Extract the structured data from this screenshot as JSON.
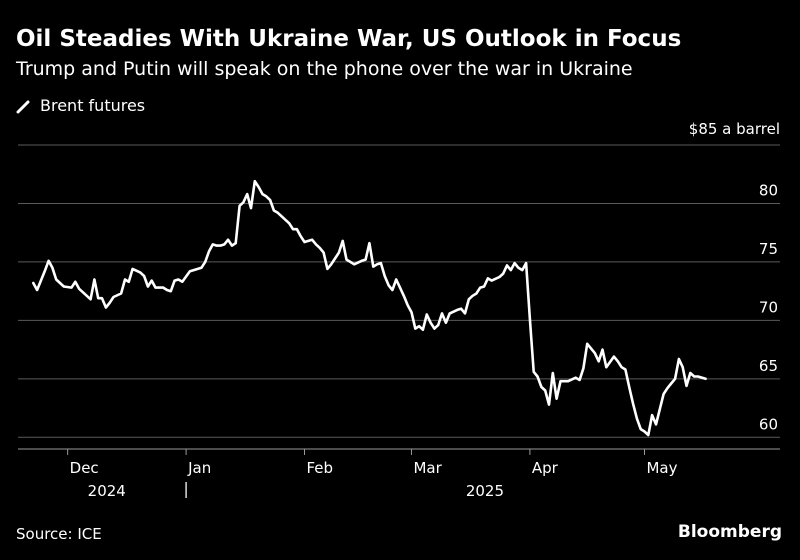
{
  "header": {
    "title": "Oil Steadies With Ukraine War, US Outlook in Focus",
    "subtitle": "Trump and Putin will speak on the phone over the war in Ukraine"
  },
  "legend": {
    "label": "Brent futures",
    "icon": "line-swatch-icon"
  },
  "footer": {
    "source": "Source: ICE",
    "brand": "Bloomberg"
  },
  "colors": {
    "background": "#000000",
    "line": "#ffffff",
    "grid": "#5a5a5a",
    "text": "#ffffff"
  },
  "chart_data": {
    "type": "line",
    "title": "Oil Steadies With Ukraine War, US Outlook in Focus",
    "subtitle": "Trump and Putin will speak on the phone over the war in Ukraine",
    "y_unit_label": "$85 a barrel",
    "ylim": [
      59,
      85
    ],
    "y_ticks": [
      60,
      65,
      70,
      75,
      80
    ],
    "xlim": [
      "2024-11-18",
      "2025-05-26"
    ],
    "x_ticks": [
      {
        "date": "2024-12-01",
        "label": "Dec"
      },
      {
        "date": "2025-01-01",
        "label": "Jan"
      },
      {
        "date": "2025-02-01",
        "label": "Feb"
      },
      {
        "date": "2025-03-01",
        "label": "Mar"
      },
      {
        "date": "2025-04-01",
        "label": "Apr"
      },
      {
        "date": "2025-05-01",
        "label": "May"
      }
    ],
    "year_labels": [
      {
        "date": "2024-12-01",
        "label": "2024"
      },
      {
        "date": "2025-03-10",
        "label": "2025"
      }
    ],
    "year_divider": "2025-01-01",
    "grid": "horizontal",
    "legend_position": "top-left",
    "series": [
      {
        "name": "Brent futures",
        "points": [
          [
            "2024-11-22",
            73.2
          ],
          [
            "2024-11-23",
            72.6
          ],
          [
            "2024-11-25",
            74.2
          ],
          [
            "2024-11-26",
            75.1
          ],
          [
            "2024-11-27",
            74.5
          ],
          [
            "2024-11-28",
            73.5
          ],
          [
            "2024-11-30",
            72.9
          ],
          [
            "2024-12-02",
            72.8
          ],
          [
            "2024-12-03",
            73.3
          ],
          [
            "2024-12-04",
            72.7
          ],
          [
            "2024-12-06",
            72.1
          ],
          [
            "2024-12-07",
            71.8
          ],
          [
            "2024-12-08",
            73.5
          ],
          [
            "2024-12-09",
            71.9
          ],
          [
            "2024-12-10",
            71.9
          ],
          [
            "2024-12-11",
            71.1
          ],
          [
            "2024-12-12",
            71.5
          ],
          [
            "2024-12-13",
            72.0
          ],
          [
            "2024-12-15",
            72.3
          ],
          [
            "2024-12-16",
            73.5
          ],
          [
            "2024-12-17",
            73.3
          ],
          [
            "2024-12-18",
            74.4
          ],
          [
            "2024-12-20",
            74.1
          ],
          [
            "2024-12-21",
            73.8
          ],
          [
            "2024-12-22",
            72.9
          ],
          [
            "2024-12-23",
            73.4
          ],
          [
            "2024-12-24",
            72.8
          ],
          [
            "2024-12-26",
            72.8
          ],
          [
            "2024-12-27",
            72.6
          ],
          [
            "2024-12-28",
            72.5
          ],
          [
            "2024-12-29",
            73.4
          ],
          [
            "2024-12-30",
            73.5
          ],
          [
            "2024-12-31",
            73.3
          ],
          [
            "2025-01-02",
            74.2
          ],
          [
            "2025-01-03",
            74.3
          ],
          [
            "2025-01-05",
            74.5
          ],
          [
            "2025-01-06",
            75.0
          ],
          [
            "2025-01-07",
            75.9
          ],
          [
            "2025-01-08",
            76.5
          ],
          [
            "2025-01-09",
            76.4
          ],
          [
            "2025-01-10",
            76.4
          ],
          [
            "2025-01-11",
            76.5
          ],
          [
            "2025-01-12",
            76.9
          ],
          [
            "2025-01-13",
            76.4
          ],
          [
            "2025-01-14",
            76.6
          ],
          [
            "2025-01-15",
            79.8
          ],
          [
            "2025-01-16",
            80.1
          ],
          [
            "2025-01-17",
            80.8
          ],
          [
            "2025-01-18",
            79.6
          ],
          [
            "2025-01-19",
            81.9
          ],
          [
            "2025-01-20",
            81.4
          ],
          [
            "2025-01-21",
            80.8
          ],
          [
            "2025-01-22",
            80.6
          ],
          [
            "2025-01-23",
            80.3
          ],
          [
            "2025-01-24",
            79.4
          ],
          [
            "2025-01-25",
            79.2
          ],
          [
            "2025-01-27",
            78.6
          ],
          [
            "2025-01-28",
            78.3
          ],
          [
            "2025-01-29",
            77.8
          ],
          [
            "2025-01-30",
            77.8
          ],
          [
            "2025-01-31",
            77.2
          ],
          [
            "2025-02-01",
            76.7
          ],
          [
            "2025-02-02",
            76.8
          ],
          [
            "2025-02-03",
            76.9
          ],
          [
            "2025-02-04",
            76.5
          ],
          [
            "2025-02-05",
            76.2
          ],
          [
            "2025-02-06",
            75.8
          ],
          [
            "2025-02-07",
            74.4
          ],
          [
            "2025-02-08",
            74.8
          ],
          [
            "2025-02-09",
            75.3
          ],
          [
            "2025-02-10",
            75.8
          ],
          [
            "2025-02-11",
            76.8
          ],
          [
            "2025-02-12",
            75.2
          ],
          [
            "2025-02-13",
            75.0
          ],
          [
            "2025-02-14",
            74.8
          ],
          [
            "2025-02-16",
            75.1
          ],
          [
            "2025-02-17",
            75.2
          ],
          [
            "2025-02-18",
            76.6
          ],
          [
            "2025-02-19",
            74.6
          ],
          [
            "2025-02-20",
            74.8
          ],
          [
            "2025-02-21",
            74.9
          ],
          [
            "2025-02-22",
            73.8
          ],
          [
            "2025-02-23",
            73.0
          ],
          [
            "2025-02-24",
            72.6
          ],
          [
            "2025-02-25",
            73.5
          ],
          [
            "2025-02-26",
            72.8
          ],
          [
            "2025-02-27",
            72.1
          ],
          [
            "2025-02-28",
            71.3
          ],
          [
            "2025-03-01",
            70.7
          ],
          [
            "2025-03-02",
            69.3
          ],
          [
            "2025-03-03",
            69.5
          ],
          [
            "2025-03-04",
            69.2
          ],
          [
            "2025-03-05",
            70.5
          ],
          [
            "2025-03-06",
            69.8
          ],
          [
            "2025-03-07",
            69.3
          ],
          [
            "2025-03-08",
            69.6
          ],
          [
            "2025-03-09",
            70.6
          ],
          [
            "2025-03-10",
            69.8
          ],
          [
            "2025-03-11",
            70.6
          ],
          [
            "2025-03-13",
            70.9
          ],
          [
            "2025-03-14",
            71.0
          ],
          [
            "2025-03-15",
            70.6
          ],
          [
            "2025-03-16",
            71.8
          ],
          [
            "2025-03-17",
            72.1
          ],
          [
            "2025-03-18",
            72.3
          ],
          [
            "2025-03-19",
            72.8
          ],
          [
            "2025-03-20",
            72.9
          ],
          [
            "2025-03-21",
            73.6
          ],
          [
            "2025-03-22",
            73.4
          ],
          [
            "2025-03-24",
            73.7
          ],
          [
            "2025-03-25",
            74.0
          ],
          [
            "2025-03-26",
            74.7
          ],
          [
            "2025-03-27",
            74.3
          ],
          [
            "2025-03-28",
            74.9
          ],
          [
            "2025-03-29",
            74.5
          ],
          [
            "2025-03-30",
            74.3
          ],
          [
            "2025-03-31",
            74.9
          ],
          [
            "2025-04-01",
            70.1
          ],
          [
            "2025-04-02",
            65.6
          ],
          [
            "2025-04-03",
            65.2
          ],
          [
            "2025-04-04",
            64.3
          ],
          [
            "2025-04-05",
            64.0
          ],
          [
            "2025-04-06",
            62.8
          ],
          [
            "2025-04-07",
            65.5
          ],
          [
            "2025-04-08",
            63.3
          ],
          [
            "2025-04-09",
            64.8
          ],
          [
            "2025-04-11",
            64.8
          ],
          [
            "2025-04-13",
            65.1
          ],
          [
            "2025-04-14",
            64.9
          ],
          [
            "2025-04-15",
            65.9
          ],
          [
            "2025-04-16",
            68.0
          ],
          [
            "2025-04-17",
            67.6
          ],
          [
            "2025-04-18",
            67.2
          ],
          [
            "2025-04-19",
            66.5
          ],
          [
            "2025-04-20",
            67.5
          ],
          [
            "2025-04-21",
            66.0
          ],
          [
            "2025-04-23",
            66.9
          ],
          [
            "2025-04-24",
            66.5
          ],
          [
            "2025-04-25",
            66.0
          ],
          [
            "2025-04-26",
            65.8
          ],
          [
            "2025-04-27",
            64.3
          ],
          [
            "2025-04-28",
            62.9
          ],
          [
            "2025-04-29",
            61.6
          ],
          [
            "2025-04-30",
            60.7
          ],
          [
            "2025-05-01",
            60.5
          ],
          [
            "2025-05-02",
            60.2
          ],
          [
            "2025-05-03",
            61.9
          ],
          [
            "2025-05-04",
            61.1
          ],
          [
            "2025-05-05",
            62.4
          ],
          [
            "2025-05-06",
            63.7
          ],
          [
            "2025-05-07",
            64.2
          ],
          [
            "2025-05-08",
            64.6
          ],
          [
            "2025-05-09",
            65.0
          ],
          [
            "2025-05-10",
            66.7
          ],
          [
            "2025-05-11",
            66.0
          ],
          [
            "2025-05-12",
            64.4
          ],
          [
            "2025-05-13",
            65.5
          ],
          [
            "2025-05-14",
            65.2
          ],
          [
            "2025-05-15",
            65.2
          ],
          [
            "2025-05-17",
            65.0
          ]
        ]
      }
    ]
  }
}
